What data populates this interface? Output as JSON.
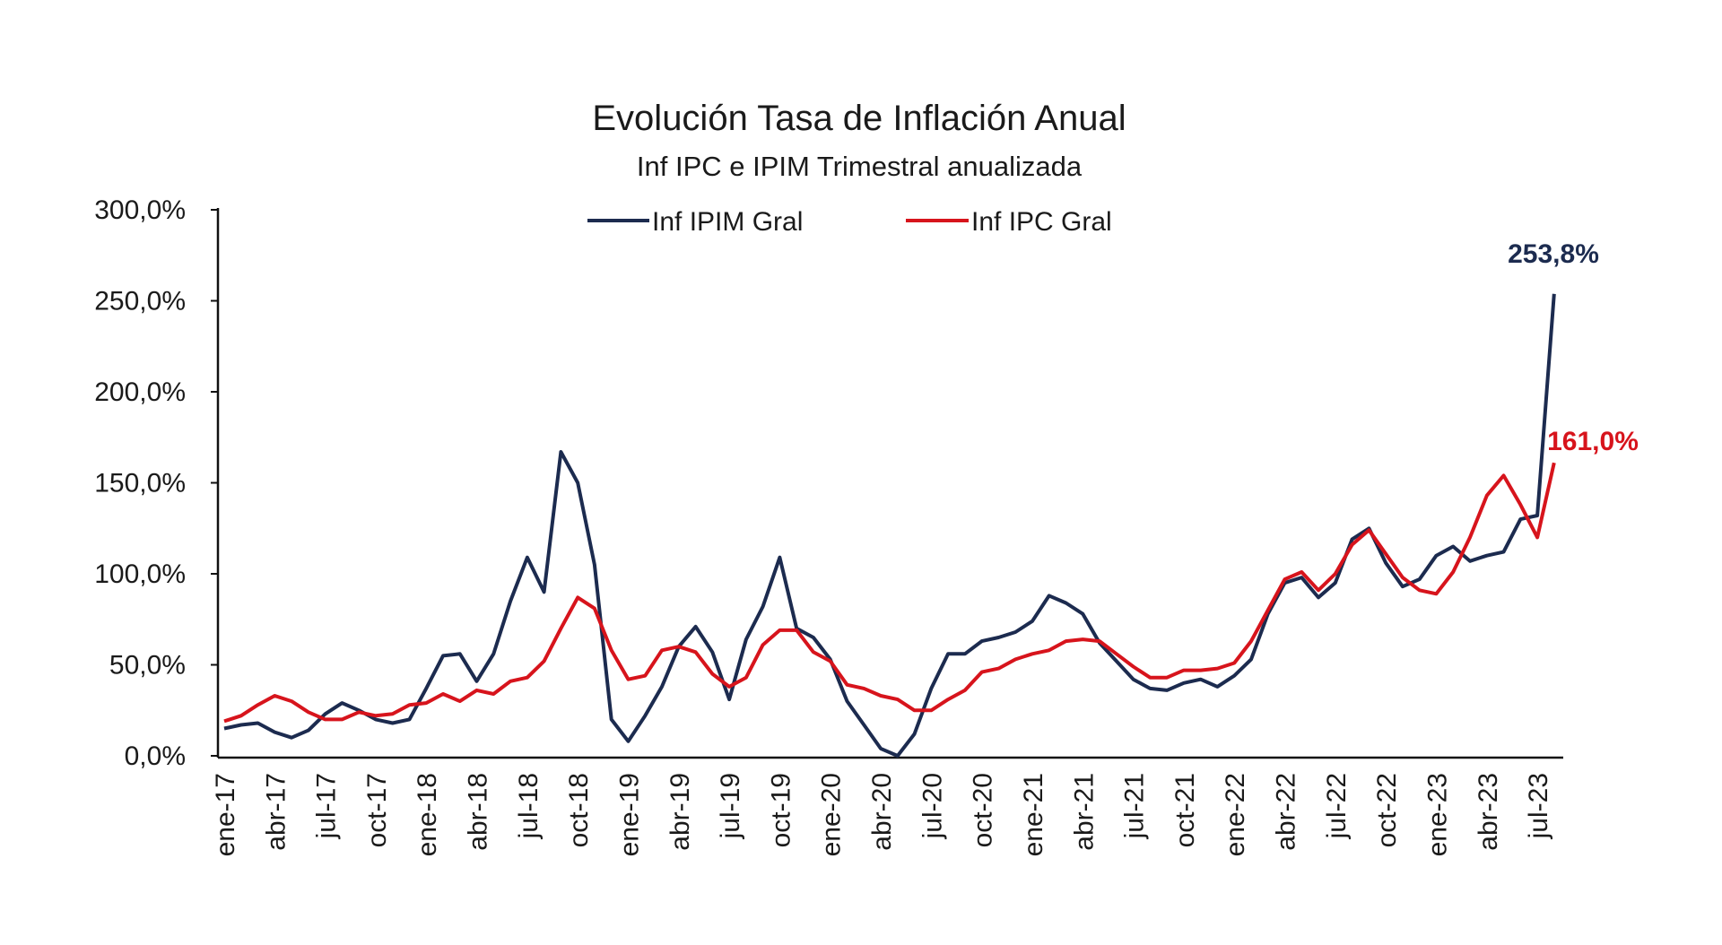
{
  "chart_data": {
    "type": "line",
    "title": "Evolución Tasa de Inflación Anual",
    "subtitle": "Inf IPC e IPIM Trimestral anualizada",
    "xlabel": "",
    "ylabel": "",
    "ylim": [
      0,
      300
    ],
    "yticks": [
      "0,0%",
      "50,0%",
      "100,0%",
      "150,0%",
      "200,0%",
      "250,0%",
      "300,0%"
    ],
    "ytick_values": [
      0,
      50,
      100,
      150,
      200,
      250,
      300
    ],
    "grid": false,
    "legend_position": "top-center",
    "x": [
      "ene-17",
      "feb-17",
      "mar-17",
      "abr-17",
      "may-17",
      "jun-17",
      "jul-17",
      "ago-17",
      "sep-17",
      "oct-17",
      "nov-17",
      "dic-17",
      "ene-18",
      "feb-18",
      "mar-18",
      "abr-18",
      "may-18",
      "jun-18",
      "jul-18",
      "ago-18",
      "sep-18",
      "oct-18",
      "nov-18",
      "dic-18",
      "ene-19",
      "feb-19",
      "mar-19",
      "abr-19",
      "may-19",
      "jun-19",
      "jul-19",
      "ago-19",
      "sep-19",
      "oct-19",
      "nov-19",
      "dic-19",
      "ene-20",
      "feb-20",
      "mar-20",
      "abr-20",
      "may-20",
      "jun-20",
      "jul-20",
      "ago-20",
      "sep-20",
      "oct-20",
      "nov-20",
      "dic-20",
      "ene-21",
      "feb-21",
      "mar-21",
      "abr-21",
      "may-21",
      "jun-21",
      "jul-21",
      "ago-21",
      "sep-21",
      "oct-21",
      "nov-21",
      "dic-21",
      "ene-22",
      "feb-22",
      "mar-22",
      "abr-22",
      "may-22",
      "jun-22",
      "jul-22",
      "ago-22",
      "sep-22",
      "oct-22",
      "nov-22",
      "dic-22",
      "ene-23",
      "feb-23",
      "mar-23",
      "abr-23",
      "may-23",
      "jun-23",
      "jul-23",
      "ago-23"
    ],
    "xtick_labels": [
      "ene-17",
      "abr-17",
      "jul-17",
      "oct-17",
      "ene-18",
      "abr-18",
      "jul-18",
      "oct-18",
      "ene-19",
      "abr-19",
      "jul-19",
      "oct-19",
      "ene-20",
      "abr-20",
      "jul-20",
      "oct-20",
      "ene-21",
      "abr-21",
      "jul-21",
      "oct-21",
      "ene-22",
      "abr-22",
      "jul-22",
      "oct-22",
      "ene-23",
      "abr-23",
      "jul-23"
    ],
    "series": [
      {
        "name": "Inf IPIM Gral",
        "color": "#1c2b4f",
        "values": [
          15,
          17,
          18,
          13,
          10,
          14,
          23,
          29,
          25,
          20,
          18,
          20,
          37,
          55,
          56,
          41,
          56,
          85,
          109,
          90,
          167,
          150,
          105,
          20,
          8,
          22,
          38,
          60,
          71,
          57,
          31,
          64,
          82,
          109,
          70,
          65,
          53,
          30,
          17,
          4,
          0,
          12,
          37,
          56,
          56,
          63,
          65,
          68,
          74,
          88,
          84,
          78,
          62,
          52,
          42,
          37,
          36,
          40,
          42,
          38,
          44,
          53,
          78,
          95,
          98,
          87,
          95,
          119,
          125,
          106,
          93,
          97,
          110,
          115,
          107,
          110,
          112,
          130,
          132,
          253.8
        ],
        "end_label": "253,8%"
      },
      {
        "name": "Inf IPC Gral",
        "color": "#d7141c",
        "values": [
          19,
          22,
          28,
          33,
          30,
          24,
          20,
          20,
          24,
          22,
          23,
          28,
          29,
          34,
          30,
          36,
          34,
          41,
          43,
          52,
          70,
          87,
          81,
          58,
          42,
          44,
          58,
          60,
          57,
          45,
          38,
          43,
          61,
          69,
          69,
          57,
          52,
          39,
          37,
          33,
          31,
          25,
          25,
          31,
          36,
          46,
          48,
          53,
          56,
          58,
          63,
          64,
          63,
          56,
          49,
          43,
          43,
          47,
          47,
          48,
          51,
          63,
          80,
          97,
          101,
          91,
          100,
          116,
          124,
          111,
          98,
          91,
          89,
          101,
          120,
          143,
          154,
          138,
          120,
          161.0
        ],
        "end_label": "161,0%"
      }
    ]
  }
}
